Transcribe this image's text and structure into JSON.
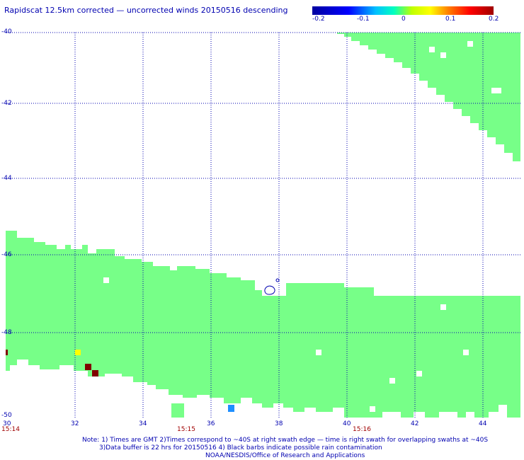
{
  "title": "Rapidscat 12.5km corrected — uncorrected winds 20150516 descending",
  "colorbar": {
    "labels": [
      "-0.2",
      "-0.1",
      "0",
      "0.1",
      "0.2"
    ],
    "colors": [
      "#0000a0",
      "#0000ff",
      "#00c0ff",
      "#00ffc0",
      "#c0ff00",
      "#ffff00",
      "#ff8000",
      "#ff0000",
      "#a00000"
    ]
  },
  "axes": {
    "y_labels": [
      "-40",
      "-42",
      "-44",
      "-46",
      "-48",
      "-50"
    ],
    "x_labels": [
      "30",
      "32",
      "34",
      "36",
      "38",
      "40",
      "42",
      "44"
    ],
    "time_labels": [
      "15:14",
      "15:15",
      "15:16"
    ]
  },
  "colors": {
    "swath": "#77ff88",
    "grid": "#0000b0",
    "text": "#0000b0",
    "time_text": "#a00000",
    "dark_red": "#800000",
    "yellow": "#ffff00",
    "blue": "#1e8fff"
  },
  "notes": {
    "line1": "Note: 1) Times are GMT 2)Times correspond to ~40S at right swath edge — time is right swath for overlapping swaths at ~40S",
    "line2": "3)Data buffer is 22 hrs for 20150516 4) Black barbs indicate possible rain contamination",
    "line3": "NOAA/NESDIS/Office of Research and Applications"
  }
}
